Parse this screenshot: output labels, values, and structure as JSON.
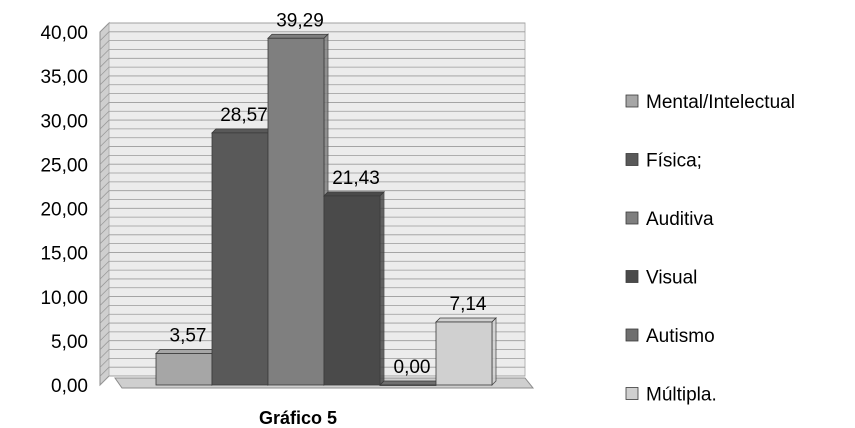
{
  "chart_data": {
    "type": "bar",
    "style": "3d-clustered-column",
    "categories": [
      ""
    ],
    "series": [
      {
        "name": "Mental/Intelectual",
        "values": [
          3.57
        ],
        "color": "#a6a6a6"
      },
      {
        "name": "Física;",
        "values": [
          28.57
        ],
        "color": "#595959"
      },
      {
        "name": "Auditiva",
        "values": [
          39.29
        ],
        "color": "#7f7f7f"
      },
      {
        "name": "Visual",
        "values": [
          21.43
        ],
        "color": "#4a4a4a"
      },
      {
        "name": "Autismo",
        "values": [
          0.0
        ],
        "color": "#6f6f6f"
      },
      {
        "name": "Múltipla.",
        "values": [
          7.14
        ],
        "color": "#d0d0d0"
      }
    ],
    "data_labels": [
      "3,57",
      "28,57",
      "39,29",
      "21,43",
      "0,00",
      "7,14"
    ],
    "ylim": [
      0,
      40
    ],
    "y_ticks": [
      "0,00",
      "5,00",
      "10,00",
      "15,00",
      "20,00",
      "25,00",
      "30,00",
      "35,00",
      "40,00"
    ],
    "xlabel": "Gráfico 5",
    "ylabel": "",
    "title": "",
    "grid": true,
    "legend_position": "right"
  }
}
